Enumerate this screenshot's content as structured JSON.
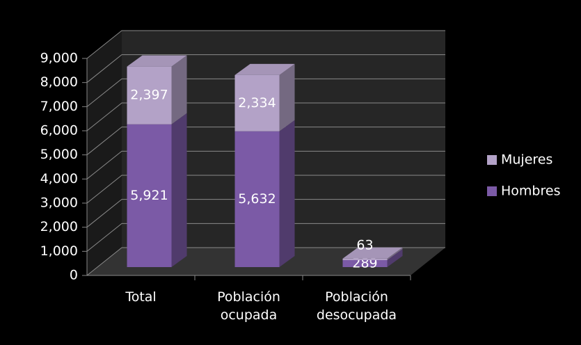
{
  "chart_data": {
    "type": "bar3d_stacked",
    "categories": [
      "Total",
      "Población ocupada",
      "Población desocupada"
    ],
    "series": [
      {
        "name": "Hombres",
        "color": "#7b5aa6",
        "values": [
          5921,
          5632,
          289
        ],
        "value_labels": [
          "5,921",
          "5,632",
          "289"
        ]
      },
      {
        "name": "Mujeres",
        "color": "#b3a2c7",
        "values": [
          2397,
          2334,
          63
        ],
        "value_labels": [
          "2,397",
          "2,334",
          "63"
        ]
      }
    ],
    "ylim": [
      0,
      9000
    ],
    "yticks": [
      0,
      {
        "value": 1000,
        "label": "1,000"
      },
      {
        "value": 2000,
        "label": "2,000"
      },
      {
        "value": 3000,
        "label": "3,000"
      },
      {
        "value": 4000,
        "label": "4,000"
      },
      {
        "value": 5000,
        "label": "5,000"
      },
      {
        "value": 6000,
        "label": "6,000"
      },
      {
        "value": 7000,
        "label": "7,000"
      },
      {
        "value": 8000,
        "label": "8,000"
      },
      {
        "value": 9000,
        "label": "9,000"
      }
    ],
    "grid": true,
    "legend": "right"
  }
}
